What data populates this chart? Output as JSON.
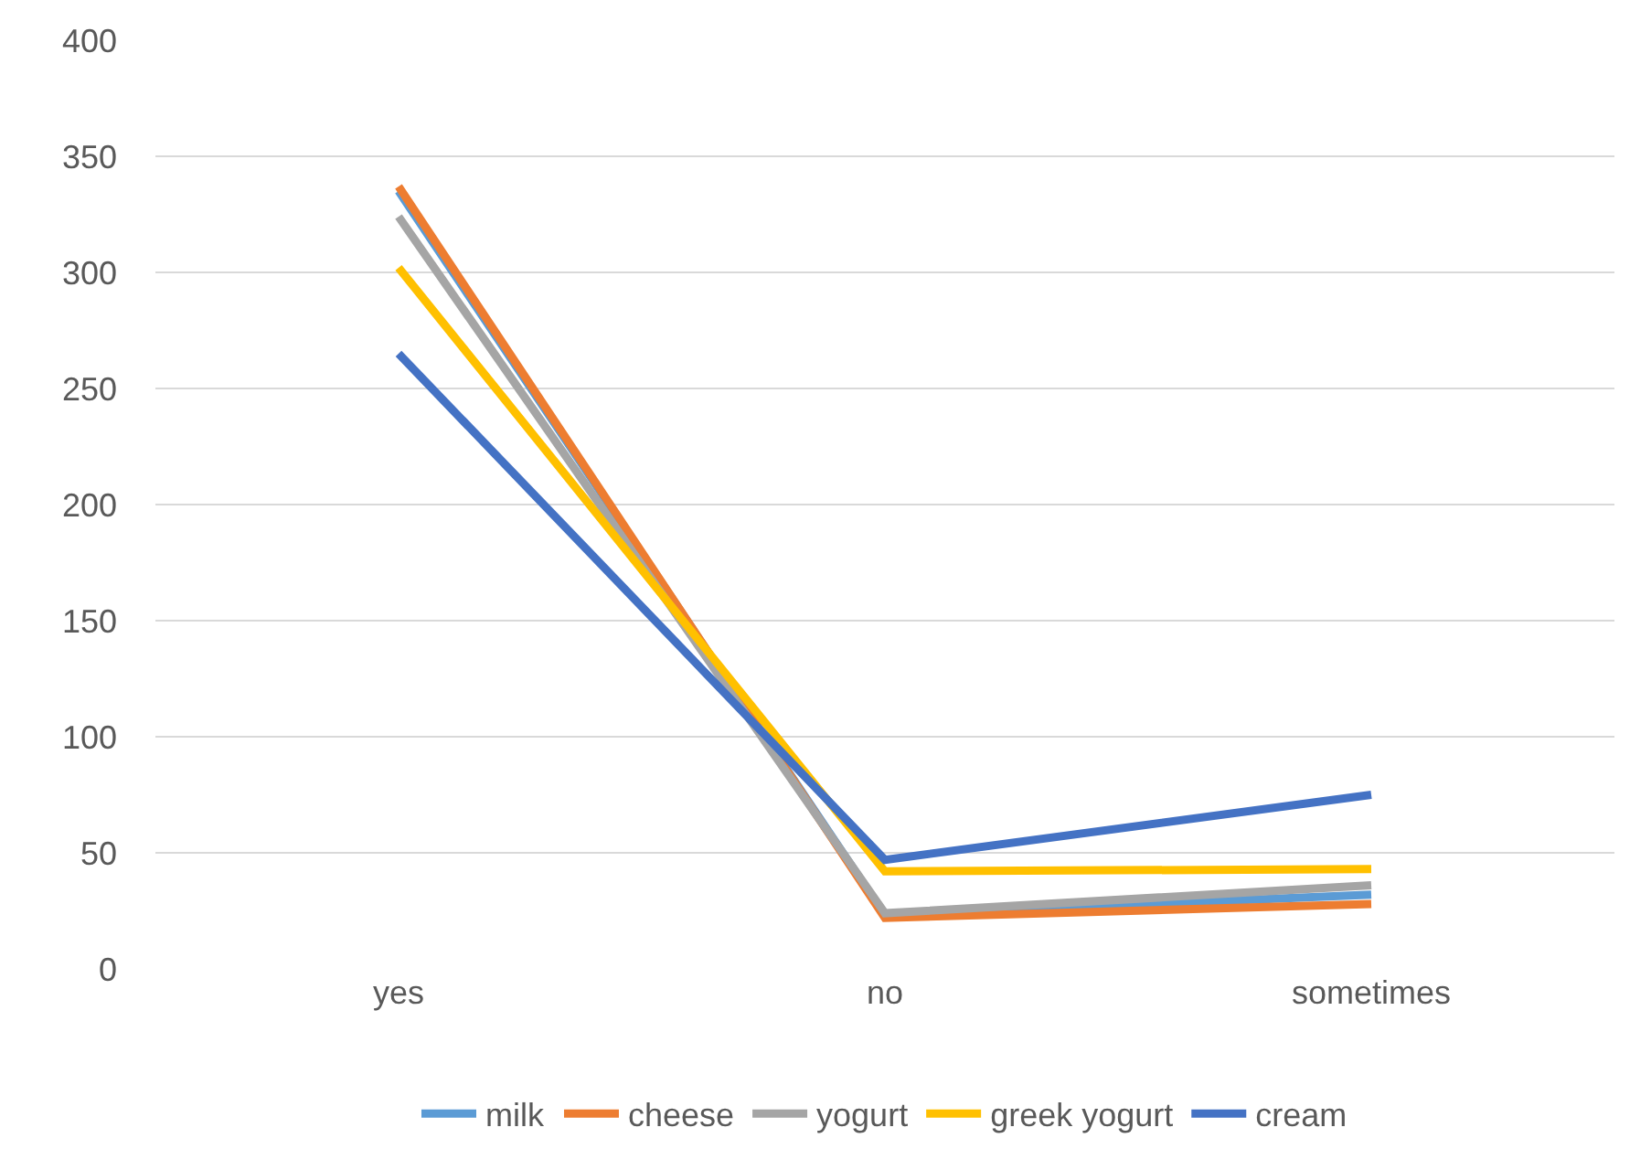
{
  "chart_data": {
    "type": "line",
    "categories": [
      "yes",
      "no",
      "sometimes"
    ],
    "series": [
      {
        "name": "milk",
        "color": "#5b9bd5",
        "values": [
          335,
          23,
          32
        ]
      },
      {
        "name": "cheese",
        "color": "#ed7d31",
        "values": [
          337,
          22,
          28
        ]
      },
      {
        "name": "yogurt",
        "color": "#a5a5a5",
        "values": [
          324,
          24,
          36
        ]
      },
      {
        "name": "greek yogurt",
        "color": "#ffc000",
        "values": [
          302,
          42,
          43
        ]
      },
      {
        "name": "cream",
        "color": "#4472c4",
        "values": [
          265,
          47,
          75
        ]
      }
    ],
    "ylim": [
      0,
      400
    ],
    "yticks": [
      0,
      50,
      100,
      150,
      200,
      250,
      300,
      350,
      400
    ],
    "grid": "y",
    "legend": "bottom",
    "marker": "none",
    "line_style": "solid"
  }
}
